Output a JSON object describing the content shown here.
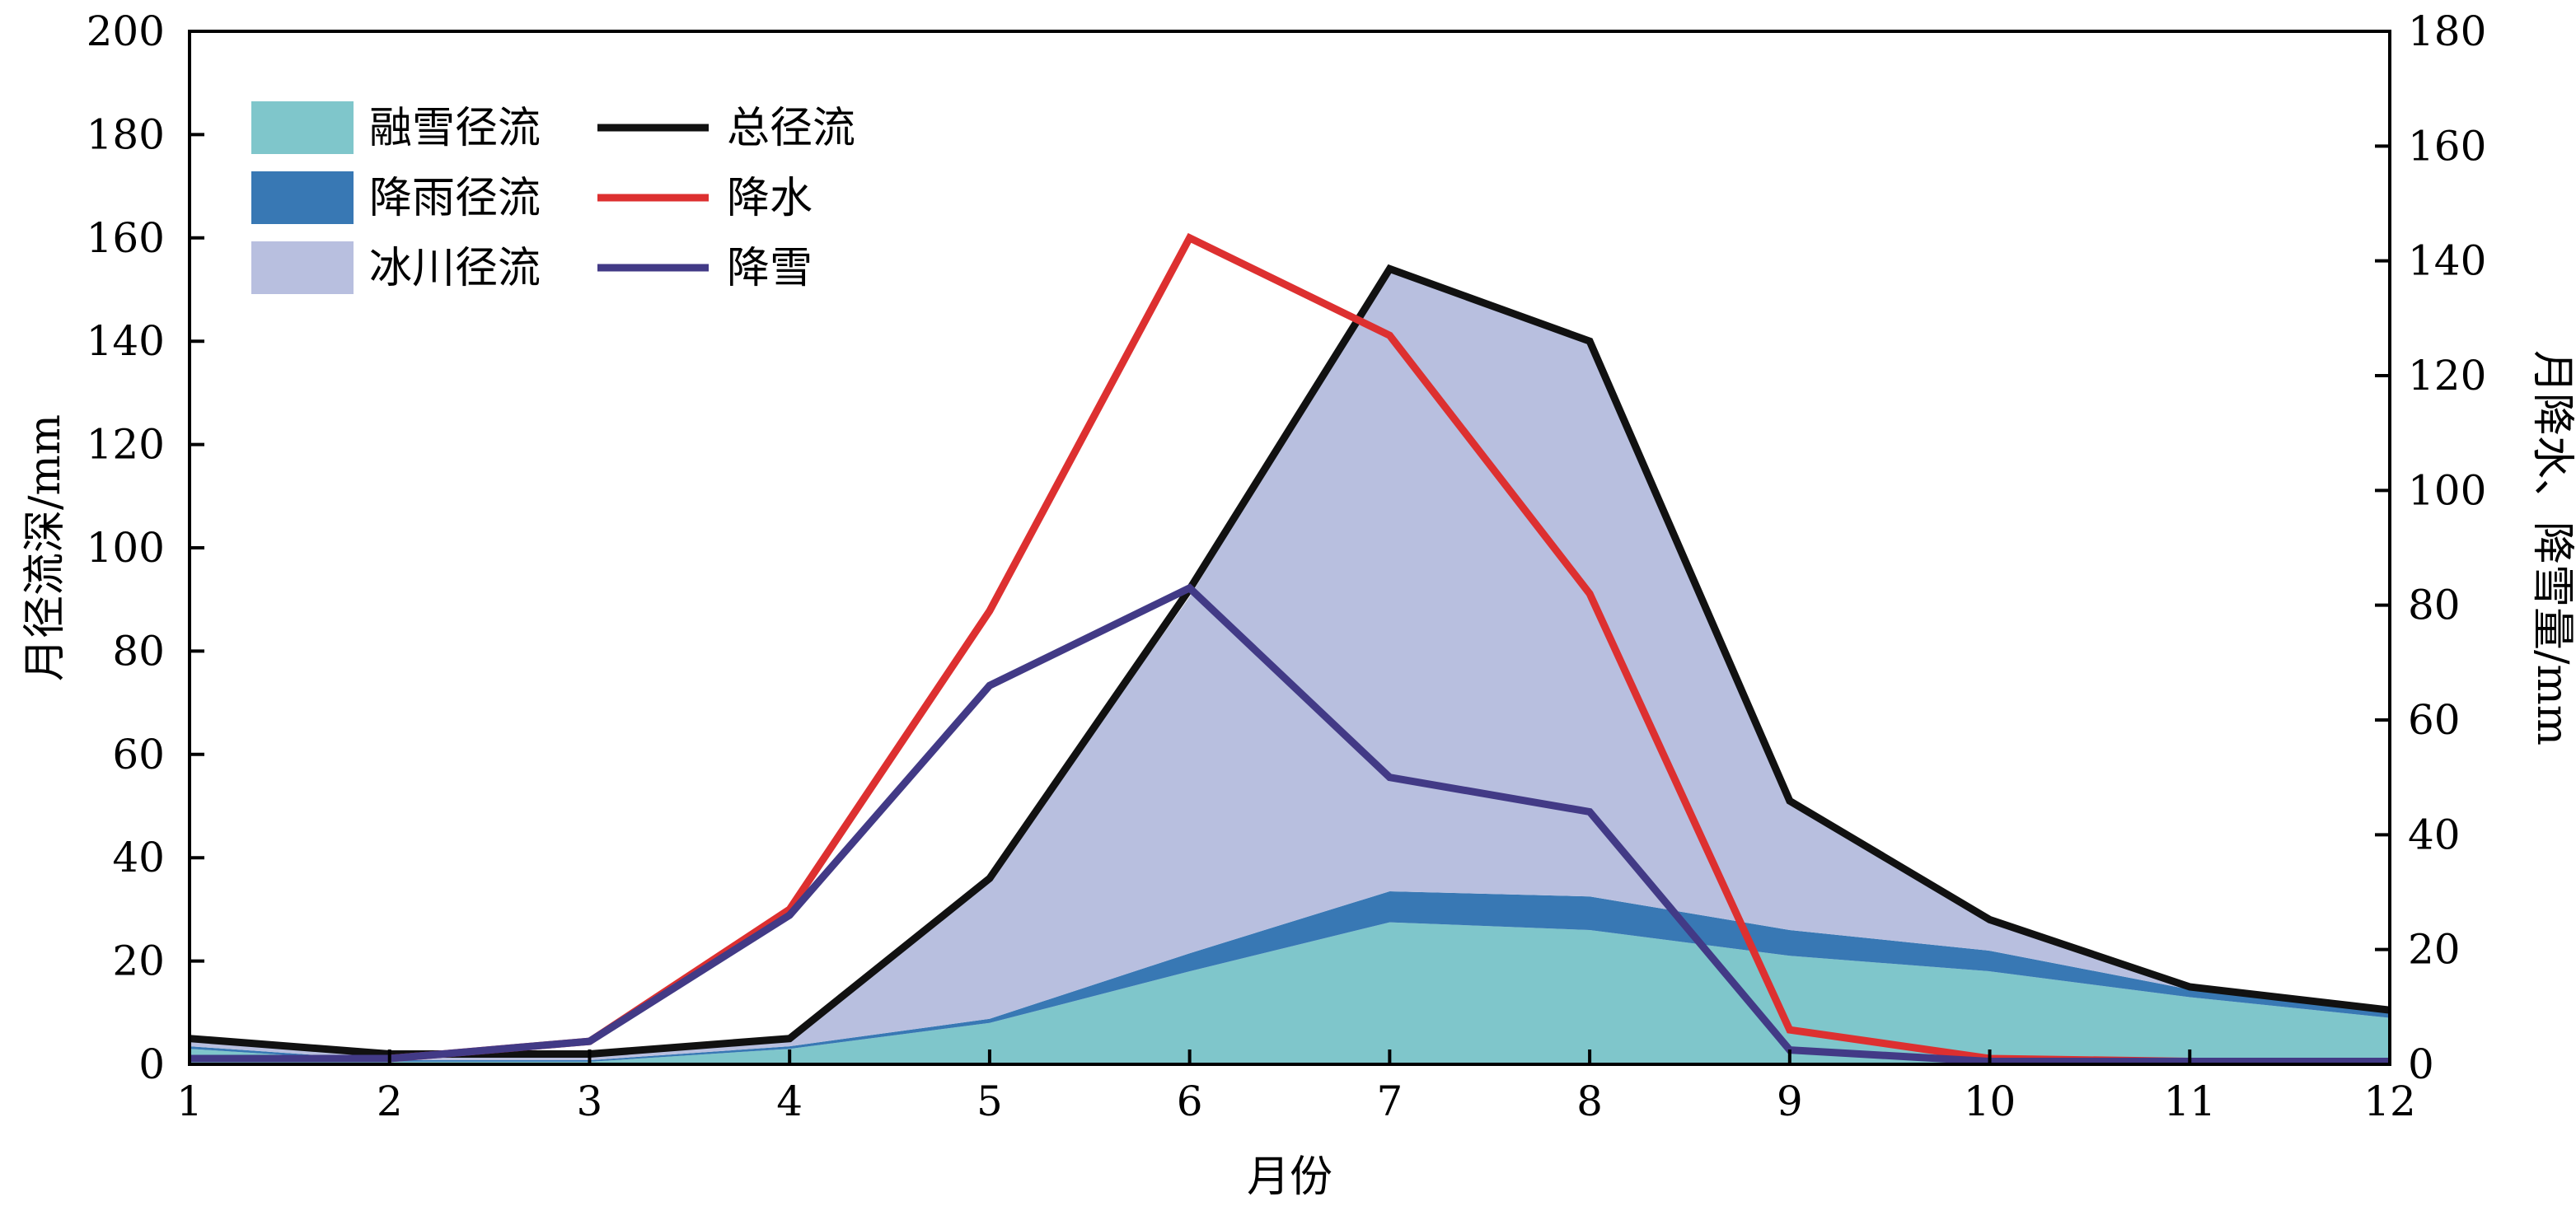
{
  "chart_data": {
    "type": "area",
    "x": [
      1,
      2,
      3,
      4,
      5,
      6,
      7,
      8,
      9,
      10,
      11,
      12
    ],
    "xlabel": "月份",
    "ylabel_left": "月径流深/mm",
    "ylabel_right": "月降水、降雪量/mm",
    "xlim": [
      1,
      12
    ],
    "ylim_left": [
      0,
      200
    ],
    "ylim_right": [
      0,
      180
    ],
    "x_ticks": [
      "1",
      "2",
      "3",
      "4",
      "5",
      "6",
      "7",
      "8",
      "9",
      "10",
      "11",
      "12"
    ],
    "y_ticks_left": [
      "0",
      "20",
      "40",
      "60",
      "80",
      "100",
      "120",
      "140",
      "160",
      "180",
      "200"
    ],
    "y_ticks_right": [
      "0",
      "20",
      "40",
      "60",
      "80",
      "100",
      "120",
      "140",
      "160",
      "180"
    ],
    "grid": false,
    "legend_position": "top-left",
    "stacked_areas": [
      {
        "name": "融雪径流",
        "axis": "left",
        "color": "#7fc6cb",
        "values": [
          3,
          0.5,
          0.5,
          3,
          8,
          18,
          27.5,
          26,
          21,
          18,
          13,
          9
        ]
      },
      {
        "name": "降雨径流",
        "axis": "left",
        "color": "#3878b4",
        "values": [
          0.5,
          0.3,
          0.3,
          0.5,
          0.8,
          3.5,
          6,
          6.5,
          5,
          4,
          1.5,
          1
        ]
      },
      {
        "name": "冰川径流",
        "axis": "left",
        "color": "#b8bfdf",
        "values": [
          1.5,
          1.2,
          1.2,
          1.5,
          27,
          69,
          120.5,
          107.5,
          25,
          6,
          0.5,
          0.5
        ]
      }
    ],
    "series": [
      {
        "name": "总径流",
        "axis": "left",
        "color": "#111111",
        "values": [
          5,
          2,
          2,
          5,
          36,
          92,
          154,
          140,
          51,
          28,
          15,
          10.5
        ]
      },
      {
        "name": "降水",
        "axis": "right",
        "color": "#dd3030",
        "values": [
          1,
          1,
          4,
          27,
          79,
          144,
          127,
          82,
          6,
          1,
          0.5,
          0.5
        ]
      },
      {
        "name": "降雪",
        "axis": "right",
        "color": "#423a86",
        "values": [
          1,
          1,
          4,
          26,
          66,
          83,
          50,
          44,
          2.5,
          0.5,
          0.5,
          0.5
        ]
      }
    ],
    "legend_areas": [
      "融雪径流",
      "降雨径流",
      "冰川径流"
    ],
    "legend_lines": [
      "总径流",
      "降水",
      "降雪"
    ]
  }
}
